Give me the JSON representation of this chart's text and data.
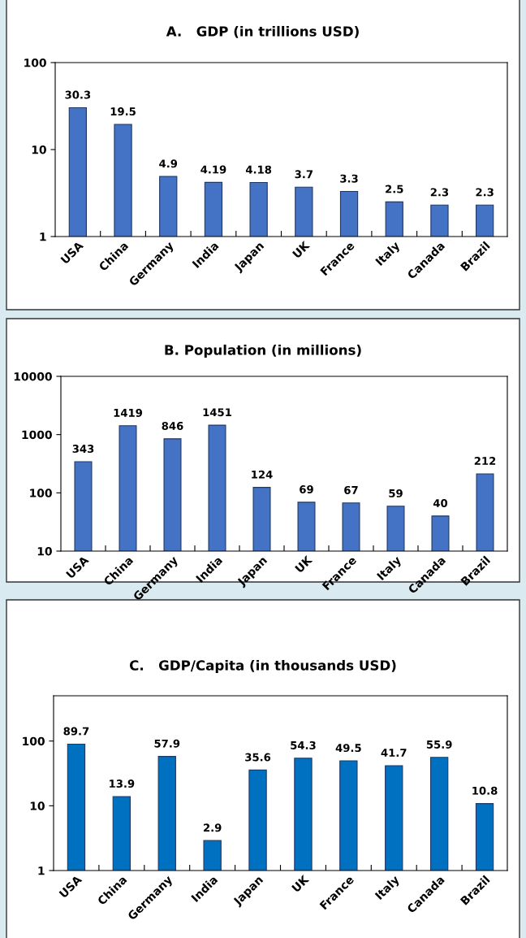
{
  "chart_data": [
    {
      "type": "bar",
      "title": "A.   GDP (in trillions USD)",
      "categories": [
        "USA",
        "China",
        "Germany",
        "India",
        "Japan",
        "UK",
        "France",
        "Italy",
        "Canada",
        "Brazil"
      ],
      "values": [
        30.3,
        19.5,
        4.9,
        4.19,
        4.18,
        3.7,
        3.3,
        2.5,
        2.3,
        2.3
      ],
      "color": "#4472c4",
      "log": true,
      "ylim": [
        1,
        100
      ],
      "yticks": [
        1,
        10,
        100
      ],
      "data_labels": true,
      "grid": false,
      "legend": false
    },
    {
      "type": "bar",
      "title": "B. Population (in millions)",
      "categories": [
        "USA",
        "China",
        "Germany",
        "India",
        "Japan",
        "UK",
        "France",
        "Italy",
        "Canada",
        "Brazil"
      ],
      "values": [
        343,
        1419,
        846,
        1451,
        124,
        69,
        67,
        59,
        40,
        212
      ],
      "color": "#4472c4",
      "log": true,
      "ylim": [
        10,
        10000
      ],
      "yticks": [
        10,
        100,
        1000,
        10000
      ],
      "data_labels": true,
      "grid": false,
      "legend": false
    },
    {
      "type": "bar",
      "title": "C.   GDP/Capita (in thousands USD)",
      "categories": [
        "USA",
        "China",
        "Germany",
        "India",
        "Japan",
        "UK",
        "France",
        "Italy",
        "Canada",
        "Brazil"
      ],
      "values": [
        89.7,
        13.9,
        57.9,
        2.9,
        35.6,
        54.3,
        49.5,
        41.7,
        55.9,
        10.8
      ],
      "color": "#0070c0",
      "log": true,
      "ylim": [
        1,
        500
      ],
      "yticks": [
        1,
        10,
        100
      ],
      "data_labels": true,
      "grid": false,
      "legend": false
    }
  ]
}
